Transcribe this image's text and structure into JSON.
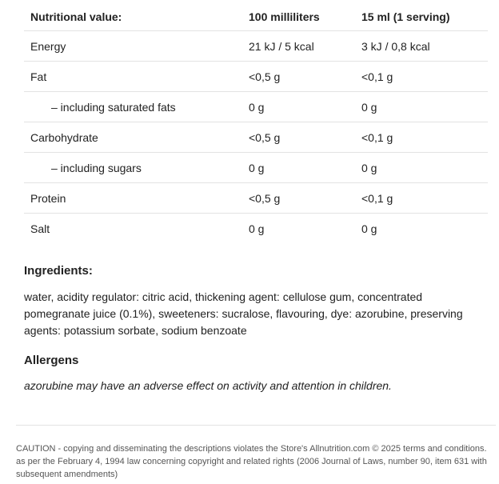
{
  "table": {
    "headers": [
      "Nutritional value:",
      "100 milliliters",
      "15 ml (1 serving)"
    ],
    "rows": [
      {
        "label": "Energy",
        "per100": "21 kJ / 5 kcal",
        "perServing": "3 kJ / 0,8 kcal"
      },
      {
        "label": "Fat",
        "per100": "<0,5 g",
        "perServing": "<0,1 g"
      },
      {
        "label": "– including saturated fats",
        "per100": "0 g",
        "perServing": "0 g"
      },
      {
        "label": "Carbohydrate",
        "per100": "<0,5 g",
        "perServing": "<0,1 g"
      },
      {
        "label": "– including sugars",
        "per100": "0 g",
        "perServing": "0 g"
      },
      {
        "label": "Protein",
        "per100": "<0,5 g",
        "perServing": "<0,1 g"
      },
      {
        "label": "Salt",
        "per100": "0 g",
        "perServing": "0 g"
      }
    ]
  },
  "ingredients": {
    "heading": "Ingredients:",
    "text": "water, acidity regulator: citric acid, thickening agent: cellulose gum, concentrated pomegranate juice (0.1%), sweeteners: sucralose, flavouring, dye: azorubine, preserving agents: potassium sorbate, sodium benzoate"
  },
  "allergens": {
    "heading": "Allergens",
    "text": "azorubine may have an adverse effect on activity and attention in children."
  },
  "footer": "CAUTION - copying and disseminating the descriptions violates the Store's Allnutrition.com © 2025 terms and conditions. as per the February 4, 1994 law concerning copyright and related rights (2006 Journal of Laws, number 90, item 631 with subsequent amendments)"
}
